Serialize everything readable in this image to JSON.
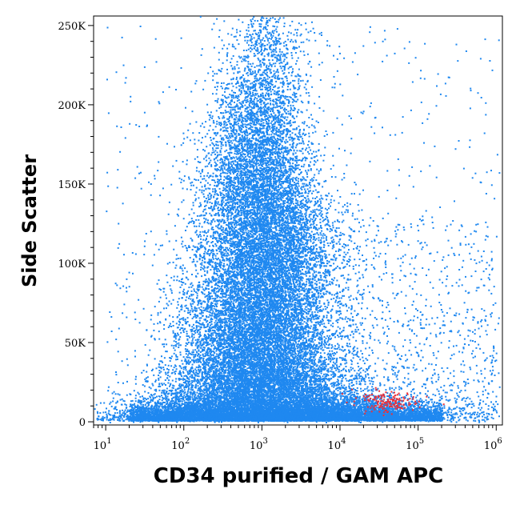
{
  "chart_data": {
    "type": "scatter",
    "title": "",
    "xlabel": "CD34 purified / GAM APC",
    "ylabel": "Side Scatter",
    "x_scale": "log",
    "xlim": [
      7,
      1200000
    ],
    "ylim": [
      -2000,
      256000
    ],
    "grid": false,
    "colors": {
      "main": "#1f88f0",
      "positive": "#e8313a"
    },
    "x_ticks": [
      {
        "value": 10,
        "base": "10",
        "exp": "1"
      },
      {
        "value": 100,
        "base": "10",
        "exp": "2"
      },
      {
        "value": 1000,
        "base": "10",
        "exp": "3"
      },
      {
        "value": 10000,
        "base": "10",
        "exp": "4"
      },
      {
        "value": 100000,
        "base": "10",
        "exp": "5"
      },
      {
        "value": 1000000,
        "base": "10",
        "exp": "6"
      }
    ],
    "y_ticks": [
      {
        "value": 0,
        "label": "0"
      },
      {
        "value": 50000,
        "label": "50K"
      },
      {
        "value": 100000,
        "label": "100K"
      },
      {
        "value": 150000,
        "label": "150K"
      },
      {
        "value": 200000,
        "label": "200K"
      },
      {
        "value": 250000,
        "label": "250K"
      }
    ],
    "series": [
      {
        "color": "#1f88f0",
        "profile_ssc": [
          0,
          10000,
          20000,
          40000,
          60000,
          80000,
          100000,
          120000,
          140000,
          160000,
          180000,
          200000,
          220000,
          240000,
          256000
        ],
        "profile_center_x": [
          1400,
          1200,
          1000,
          900,
          900,
          1000,
          1100,
          1100,
          1000,
          900,
          900,
          900,
          1000,
          1100,
          1200
        ],
        "profile_spread_decades": [
          1.05,
          0.9,
          0.6,
          0.52,
          0.5,
          0.48,
          0.46,
          0.43,
          0.4,
          0.36,
          0.33,
          0.3,
          0.28,
          0.26,
          0.25
        ],
        "profile_density": [
          1.0,
          0.95,
          0.7,
          0.55,
          0.5,
          0.5,
          0.5,
          0.45,
          0.4,
          0.33,
          0.25,
          0.18,
          0.12,
          0.08,
          0.05
        ],
        "outliers_x_range": [
          10,
          1100000
        ],
        "outliers_y_range": [
          0,
          250000
        ]
      },
      {
        "color": "#e8313a",
        "center_x": 40000,
        "spread_decades": 0.18,
        "center_y": 13000,
        "spread_y": 3500
      }
    ]
  }
}
